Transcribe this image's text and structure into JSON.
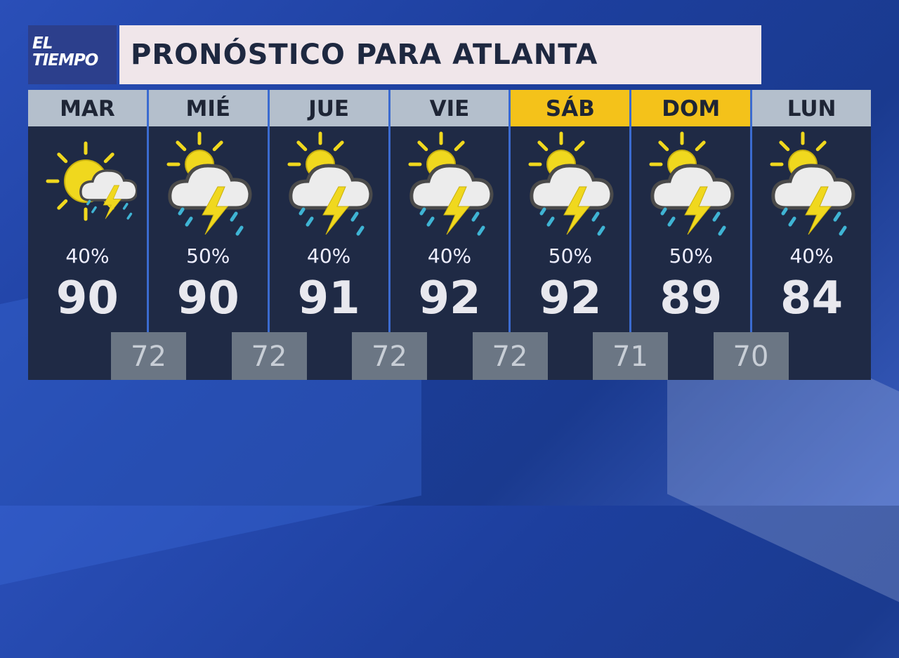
{
  "logo": {
    "line1": "EL",
    "line2": "TIEMPO"
  },
  "title": "PRONÓSTICO PARA ATLANTA",
  "colors": {
    "weekend_header": "#f4c21a",
    "weekday_header": "#b4bfcc",
    "panel": "#1f2a45",
    "sun": "#f0d81e",
    "rain": "#3fb4d4"
  },
  "days": [
    {
      "label": "MAR",
      "icon": "partly-sunny-thunderstorm-icon",
      "precip": "40%",
      "high": "90",
      "weekend": false
    },
    {
      "label": "MIÉ",
      "icon": "thunderstorm-icon",
      "precip": "50%",
      "high": "90",
      "weekend": false
    },
    {
      "label": "JUE",
      "icon": "thunderstorm-icon",
      "precip": "40%",
      "high": "91",
      "weekend": false
    },
    {
      "label": "VIE",
      "icon": "thunderstorm-icon",
      "precip": "40%",
      "high": "92",
      "weekend": false
    },
    {
      "label": "SÁB",
      "icon": "thunderstorm-icon",
      "precip": "50%",
      "high": "92",
      "weekend": true
    },
    {
      "label": "DOM",
      "icon": "thunderstorm-icon",
      "precip": "50%",
      "high": "89",
      "weekend": true
    },
    {
      "label": "LUN",
      "icon": "thunderstorm-icon",
      "precip": "40%",
      "high": "84",
      "weekend": false
    }
  ],
  "lows": [
    "72",
    "72",
    "72",
    "72",
    "71",
    "70"
  ]
}
